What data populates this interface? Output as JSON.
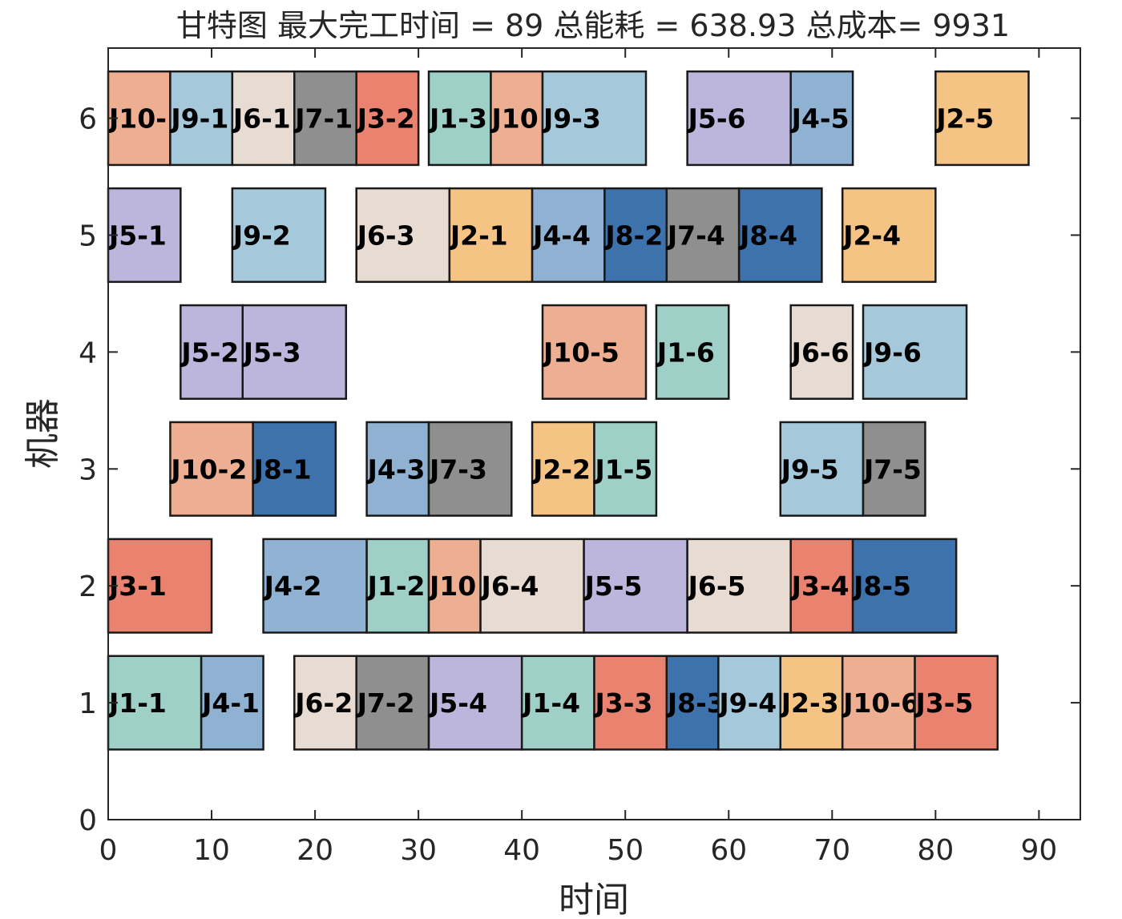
{
  "chart_data": {
    "type": "gantt",
    "title": "甘特图 最大完工时间 = 89 总能耗 = 638.93 总成本= 9931",
    "xlabel": "时间",
    "ylabel": "机器",
    "xlim": [
      0,
      94
    ],
    "ylim": [
      0,
      6.6
    ],
    "x_ticks": [
      "0",
      "10",
      "20",
      "30",
      "40",
      "50",
      "60",
      "70",
      "80",
      "90"
    ],
    "y_ticks": [
      "0",
      "1",
      "2",
      "3",
      "4",
      "5",
      "6"
    ],
    "job_colors": {
      "J1": "#9fd0c8",
      "J2": "#f5c383",
      "J3": "#e9826f",
      "J4": "#8fb1d2",
      "J5": "#bcb6dc",
      "J6": "#e8dcd2",
      "J7": "#8f8f8f",
      "J8": "#3d72ad",
      "J9": "#a5c9db",
      "J10": "#eeae91"
    },
    "tasks": [
      {
        "machine": 6,
        "job": "J10",
        "label": "J10-",
        "start": 0,
        "end": 6
      },
      {
        "machine": 6,
        "job": "J9",
        "label": "J9-1",
        "start": 6,
        "end": 12
      },
      {
        "machine": 6,
        "job": "J6",
        "label": "J6-1",
        "start": 12,
        "end": 18
      },
      {
        "machine": 6,
        "job": "J7",
        "label": "J7-1",
        "start": 18,
        "end": 24
      },
      {
        "machine": 6,
        "job": "J3",
        "label": "J3-2",
        "start": 24,
        "end": 30
      },
      {
        "machine": 6,
        "job": "J1",
        "label": "J1-3",
        "start": 31,
        "end": 37
      },
      {
        "machine": 6,
        "job": "J10",
        "label": "J10",
        "start": 37,
        "end": 42
      },
      {
        "machine": 6,
        "job": "J9",
        "label": "J9-3",
        "start": 42,
        "end": 52
      },
      {
        "machine": 6,
        "job": "J5",
        "label": "J5-6",
        "start": 56,
        "end": 66
      },
      {
        "machine": 6,
        "job": "J4",
        "label": "J4-5",
        "start": 66,
        "end": 72
      },
      {
        "machine": 6,
        "job": "J2",
        "label": "J2-5",
        "start": 80,
        "end": 89
      },
      {
        "machine": 5,
        "job": "J5",
        "label": "J5-1",
        "start": 0,
        "end": 7
      },
      {
        "machine": 5,
        "job": "J9",
        "label": "J9-2",
        "start": 12,
        "end": 21
      },
      {
        "machine": 5,
        "job": "J6",
        "label": "J6-3",
        "start": 24,
        "end": 33
      },
      {
        "machine": 5,
        "job": "J2",
        "label": "J2-1",
        "start": 33,
        "end": 41
      },
      {
        "machine": 5,
        "job": "J4",
        "label": "J4-4",
        "start": 41,
        "end": 48
      },
      {
        "machine": 5,
        "job": "J8",
        "label": "J8-2",
        "start": 48,
        "end": 54
      },
      {
        "machine": 5,
        "job": "J7",
        "label": "J7-4",
        "start": 54,
        "end": 61
      },
      {
        "machine": 5,
        "job": "J8",
        "label": "J8-4",
        "start": 61,
        "end": 69
      },
      {
        "machine": 5,
        "job": "J2",
        "label": "J2-4",
        "start": 71,
        "end": 80
      },
      {
        "machine": 4,
        "job": "J5",
        "label": "J5-2",
        "start": 7,
        "end": 13
      },
      {
        "machine": 4,
        "job": "J5",
        "label": "J5-3",
        "start": 13,
        "end": 23
      },
      {
        "machine": 4,
        "job": "J10",
        "label": "J10-5",
        "start": 42,
        "end": 52
      },
      {
        "machine": 4,
        "job": "J1",
        "label": "J1-6",
        "start": 53,
        "end": 60
      },
      {
        "machine": 4,
        "job": "J6",
        "label": "J6-6",
        "start": 66,
        "end": 72
      },
      {
        "machine": 4,
        "job": "J9",
        "label": "J9-6",
        "start": 73,
        "end": 83
      },
      {
        "machine": 3,
        "job": "J10",
        "label": "J10-2",
        "start": 6,
        "end": 14
      },
      {
        "machine": 3,
        "job": "J8",
        "label": "J8-1",
        "start": 14,
        "end": 22
      },
      {
        "machine": 3,
        "job": "J4",
        "label": "J4-3",
        "start": 25,
        "end": 31
      },
      {
        "machine": 3,
        "job": "J7",
        "label": "J7-3",
        "start": 31,
        "end": 39
      },
      {
        "machine": 3,
        "job": "J2",
        "label": "J2-2",
        "start": 41,
        "end": 47
      },
      {
        "machine": 3,
        "job": "J1",
        "label": "J1-5",
        "start": 47,
        "end": 53
      },
      {
        "machine": 3,
        "job": "J9",
        "label": "J9-5",
        "start": 65,
        "end": 73
      },
      {
        "machine": 3,
        "job": "J7",
        "label": "J7-5",
        "start": 73,
        "end": 79
      },
      {
        "machine": 2,
        "job": "J3",
        "label": "J3-1",
        "start": 0,
        "end": 10
      },
      {
        "machine": 2,
        "job": "J4",
        "label": "J4-2",
        "start": 15,
        "end": 25
      },
      {
        "machine": 2,
        "job": "J1",
        "label": "J1-2",
        "start": 25,
        "end": 31
      },
      {
        "machine": 2,
        "job": "J10",
        "label": "J10",
        "start": 31,
        "end": 36
      },
      {
        "machine": 2,
        "job": "J6",
        "label": "J6-4",
        "start": 36,
        "end": 46
      },
      {
        "machine": 2,
        "job": "J5",
        "label": "J5-5",
        "start": 46,
        "end": 56
      },
      {
        "machine": 2,
        "job": "J6",
        "label": "J6-5",
        "start": 56,
        "end": 66
      },
      {
        "machine": 2,
        "job": "J3",
        "label": "J3-4",
        "start": 66,
        "end": 72
      },
      {
        "machine": 2,
        "job": "J8",
        "label": "J8-5",
        "start": 72,
        "end": 82
      },
      {
        "machine": 1,
        "job": "J1",
        "label": "J1-1",
        "start": 0,
        "end": 9
      },
      {
        "machine": 1,
        "job": "J4",
        "label": "J4-1",
        "start": 9,
        "end": 15
      },
      {
        "machine": 1,
        "job": "J6",
        "label": "J6-2",
        "start": 18,
        "end": 24
      },
      {
        "machine": 1,
        "job": "J7",
        "label": "J7-2",
        "start": 24,
        "end": 31
      },
      {
        "machine": 1,
        "job": "J5",
        "label": "J5-4",
        "start": 31,
        "end": 40
      },
      {
        "machine": 1,
        "job": "J1",
        "label": "J1-4",
        "start": 40,
        "end": 47
      },
      {
        "machine": 1,
        "job": "J3",
        "label": "J3-3",
        "start": 47,
        "end": 54
      },
      {
        "machine": 1,
        "job": "J8",
        "label": "J8-3",
        "start": 54,
        "end": 59
      },
      {
        "machine": 1,
        "job": "J9",
        "label": "J9-4",
        "start": 59,
        "end": 65
      },
      {
        "machine": 1,
        "job": "J2",
        "label": "J2-3",
        "start": 65,
        "end": 71
      },
      {
        "machine": 1,
        "job": "J10",
        "label": "J10-6",
        "start": 71,
        "end": 78
      },
      {
        "machine": 1,
        "job": "J3",
        "label": "J3-5",
        "start": 78,
        "end": 86
      }
    ]
  }
}
